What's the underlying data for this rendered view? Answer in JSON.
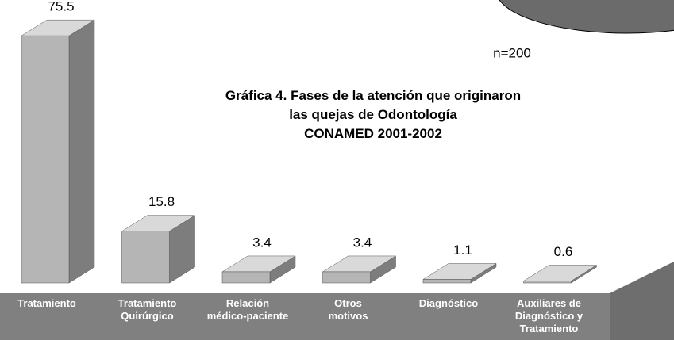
{
  "chart_data": {
    "type": "bar3d",
    "title": [
      "Gráfica 4. Fases de la atención que originaron",
      "las quejas de Odontología",
      "CONAMED 2001-2002"
    ],
    "annotation": "n=200",
    "categories": [
      [
        "Tratamiento"
      ],
      [
        "Tratamiento",
        "Quirúrgico"
      ],
      [
        "Relación",
        "médico-paciente"
      ],
      [
        "Otros",
        "motivos"
      ],
      [
        "Diagnóstico"
      ],
      [
        "Auxiliares de",
        "Diagnóstico y",
        "Tratamiento"
      ]
    ],
    "values": [
      75.5,
      15.8,
      3.4,
      3.4,
      1.1,
      0.6
    ],
    "colors": {
      "front": "#b5b5b5",
      "side": "#7d7d7d",
      "top": "#d9d9d9"
    }
  }
}
